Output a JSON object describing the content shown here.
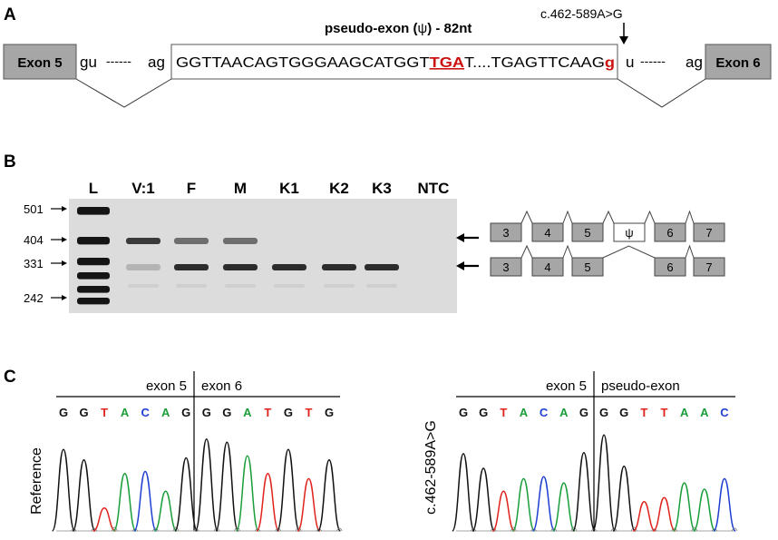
{
  "panel_a": {
    "panel_label": "A",
    "exon5_label": "Exon 5",
    "exon6_label": "Exon 6",
    "left_gu": "gu",
    "left_dashes": "------",
    "left_ag": "ag",
    "right_gu": "u",
    "right_dashes": "------",
    "right_ag": "ag",
    "pseudo_title_prefix": "pseudo-exon (",
    "pseudo_title_psi": "ψ",
    "pseudo_title_suffix": ") - 82nt",
    "seq_part1": "GGTTAACAGTGGGAAGCATGGT",
    "seq_stop_codon": "TGA",
    "seq_part2": "T....TGAGTTCAAG",
    "seq_variant_base": "g",
    "variant_label": "c.462-589A>G",
    "colors": {
      "red": "#cc1111",
      "exon_fill": "#a6a6a6"
    }
  },
  "panel_b": {
    "panel_label": "B",
    "lane_labels": [
      "L",
      "V:1",
      "F",
      "M",
      "K1",
      "K2",
      "K3",
      "NTC"
    ],
    "ladder_sizes": [
      "501",
      "404",
      "331",
      "242"
    ],
    "upper_product_exons": [
      "3",
      "4",
      "5",
      "ψ",
      "6",
      "7"
    ],
    "lower_product_exons": [
      "3",
      "4",
      "5",
      "6",
      "7"
    ],
    "band_presence": {
      "upper_404": [
        false,
        true,
        true,
        true,
        false,
        false,
        false,
        false
      ],
      "lower_331": [
        false,
        true,
        true,
        true,
        true,
        true,
        true,
        false
      ]
    }
  },
  "panel_c": {
    "panel_label": "C",
    "left": {
      "y_label": "Reference",
      "segment1": "exon 5",
      "segment2": "exon 6",
      "bases": [
        "G",
        "G",
        "T",
        "A",
        "C",
        "A",
        "G",
        "G",
        "G",
        "A",
        "T",
        "G",
        "T",
        "G"
      ]
    },
    "right": {
      "y_label": "c.462-589A>G",
      "segment1": "exon 5",
      "segment2": "pseudo-exon",
      "bases": [
        "G",
        "G",
        "T",
        "A",
        "C",
        "A",
        "G",
        "G",
        "G",
        "T",
        "T",
        "A",
        "A",
        "C"
      ]
    },
    "base_colors": {
      "A": "#1a9e3a",
      "C": "#1f3fd1",
      "G": "#111111",
      "T": "#e0231d"
    }
  }
}
